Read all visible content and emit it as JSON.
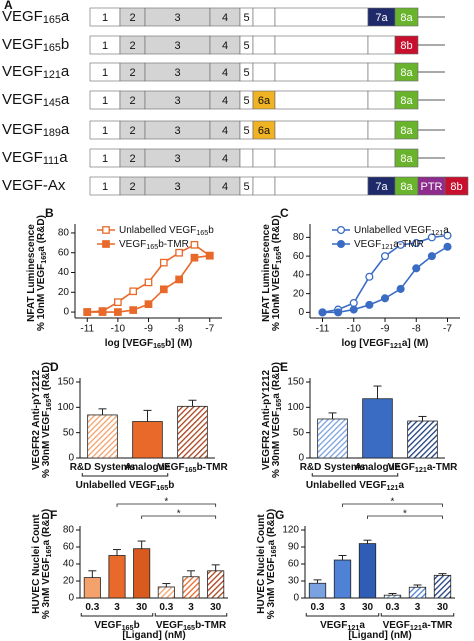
{
  "panel_a": {
    "letter": "A",
    "rows": [
      {
        "label": [
          "VEGF",
          "165",
          "a"
        ],
        "exons": [
          {
            "label": "1",
            "color": "#ffffff"
          },
          {
            "label": "2",
            "color": "#d4d4d4"
          },
          {
            "label": "3",
            "color": "#d4d4d4"
          },
          {
            "label": "4",
            "color": "#d4d4d4"
          },
          {
            "label": "5",
            "color": "#ffffff"
          },
          null,
          null,
          {
            "label": "7a",
            "color": "#1f2a6b"
          },
          {
            "label": "8a",
            "color": "#6ab42d"
          }
        ]
      },
      {
        "label": [
          "VEGF",
          "165",
          "b"
        ],
        "exons": [
          {
            "label": "1",
            "color": "#ffffff"
          },
          {
            "label": "2",
            "color": "#d4d4d4"
          },
          {
            "label": "3",
            "color": "#d4d4d4"
          },
          {
            "label": "4",
            "color": "#d4d4d4"
          },
          {
            "label": "5",
            "color": "#ffffff"
          },
          null,
          null,
          null,
          {
            "label": "8b",
            "color": "#c8102e"
          }
        ]
      },
      {
        "label": [
          "VEGF",
          "121",
          "a"
        ],
        "exons": [
          {
            "label": "1",
            "color": "#ffffff"
          },
          {
            "label": "2",
            "color": "#d4d4d4"
          },
          {
            "label": "3",
            "color": "#d4d4d4"
          },
          {
            "label": "4",
            "color": "#d4d4d4"
          },
          {
            "label": "5",
            "color": "#ffffff"
          },
          null,
          null,
          null,
          {
            "label": "8a",
            "color": "#6ab42d"
          }
        ]
      },
      {
        "label": [
          "VEGF",
          "145",
          "a"
        ],
        "exons": [
          {
            "label": "1",
            "color": "#ffffff"
          },
          {
            "label": "2",
            "color": "#d4d4d4"
          },
          {
            "label": "3",
            "color": "#d4d4d4"
          },
          {
            "label": "4",
            "color": "#d4d4d4"
          },
          {
            "label": "5",
            "color": "#ffffff"
          },
          {
            "label": "6a",
            "color": "#f0b323"
          },
          null,
          null,
          {
            "label": "8a",
            "color": "#6ab42d"
          }
        ]
      },
      {
        "label": [
          "VEGF",
          "189",
          "a"
        ],
        "exons": [
          {
            "label": "1",
            "color": "#ffffff"
          },
          {
            "label": "2",
            "color": "#d4d4d4"
          },
          {
            "label": "3",
            "color": "#d4d4d4"
          },
          {
            "label": "4",
            "color": "#d4d4d4"
          },
          {
            "label": "5",
            "color": "#ffffff"
          },
          {
            "label": "6a",
            "color": "#f0b323"
          },
          null,
          null,
          {
            "label": "8a",
            "color": "#6ab42d"
          }
        ]
      },
      {
        "label": [
          "VEGF",
          "111",
          "a"
        ],
        "exons": [
          {
            "label": "1",
            "color": "#ffffff"
          },
          {
            "label": "2",
            "color": "#d4d4d4"
          },
          {
            "label": "3",
            "color": "#d4d4d4"
          },
          {
            "label": "4",
            "color": "#d4d4d4"
          },
          null,
          null,
          null,
          null,
          {
            "label": "8a",
            "color": "#6ab42d"
          }
        ]
      },
      {
        "label": [
          "VEGF-Ax"
        ],
        "exons": [
          {
            "label": "1",
            "color": "#ffffff"
          },
          {
            "label": "2",
            "color": "#d4d4d4"
          },
          {
            "label": "3",
            "color": "#d4d4d4"
          },
          {
            "label": "4",
            "color": "#d4d4d4"
          },
          {
            "label": "5",
            "color": "#ffffff"
          },
          null,
          null,
          {
            "label": "7a",
            "color": "#1f2a6b"
          },
          {
            "label": "8a",
            "color": "#6ab42d"
          },
          {
            "label": "PTR",
            "color": "#8e2c8e"
          },
          {
            "label": "8b",
            "color": "#c8102e"
          }
        ]
      }
    ]
  },
  "chart_data": [
    {
      "panel": "B",
      "type": "line",
      "xlabel": [
        "log [VEGF",
        "165",
        "b] (M)"
      ],
      "ylabel": [
        [
          "NFAT Luminescence"
        ],
        [
          "% 10nM VEGF",
          "165",
          "a (R&D)"
        ]
      ],
      "x": [
        -11,
        -10.5,
        -10,
        -9.5,
        -9,
        -8.5,
        -8,
        -7.5,
        -7
      ],
      "series": [
        {
          "name": [
            "Unlabelled VEGF",
            "165",
            "b"
          ],
          "color": "#e8692a",
          "marker": "square",
          "filled": false,
          "values": [
            0,
            1,
            10,
            21,
            30,
            50,
            60,
            68,
            57
          ]
        },
        {
          "name": [
            "VEGF",
            "165",
            "b-TMR"
          ],
          "color": "#e8692a",
          "marker": "square",
          "filled": true,
          "values": [
            0,
            0,
            0,
            2,
            8,
            23,
            33,
            55,
            57
          ]
        }
      ],
      "xlim": [
        -11.4,
        -6.6
      ],
      "ylim": [
        -6,
        85
      ],
      "xticks": [
        -11,
        -10,
        -9,
        -8,
        -7
      ],
      "yticks": [
        0,
        20,
        40,
        60,
        80
      ]
    },
    {
      "panel": "C",
      "type": "line",
      "xlabel": [
        "log [VEGF",
        "121",
        "a] (M)"
      ],
      "ylabel": [
        [
          "NFAT Luminescence"
        ],
        [
          "% 10nM VEGF",
          "165",
          "a (R&D)"
        ]
      ],
      "x": [
        -11,
        -10.5,
        -10,
        -9.5,
        -9,
        -8.5,
        -8,
        -7.5,
        -7
      ],
      "series": [
        {
          "name": [
            "Unlabelled VEGF",
            "121",
            "a"
          ],
          "color": "#3a6cc4",
          "marker": "circle",
          "filled": false,
          "values": [
            0,
            3,
            10,
            38,
            60,
            72,
            74,
            80,
            82
          ]
        },
        {
          "name": [
            "VEGF",
            "121",
            "a-TMR"
          ],
          "color": "#3a6cc4",
          "marker": "circle",
          "filled": true,
          "values": [
            0,
            0,
            3,
            8,
            15,
            25,
            47,
            60,
            70
          ]
        }
      ],
      "xlim": [
        -11.4,
        -6.6
      ],
      "ylim": [
        -6,
        90
      ],
      "xticks": [
        -11,
        -10,
        -9,
        -8,
        -7
      ],
      "yticks": [
        0,
        20,
        40,
        60,
        80
      ]
    },
    {
      "panel": "D",
      "type": "bar",
      "categories": [
        [
          "R&D Systems"
        ],
        [
          "Analogue"
        ],
        [
          "VEGF",
          "165",
          "b-TMR"
        ]
      ],
      "values": [
        85,
        72,
        102
      ],
      "errors": [
        12,
        22,
        12
      ],
      "colors": [
        "#f4a26b",
        "#e8692a",
        "#a8441c"
      ],
      "hatched": [
        true,
        false,
        true
      ],
      "groups": [
        {
          "label": [
            "Unlabelled VEGF",
            "165",
            "b"
          ],
          "from": 0,
          "to": 1
        }
      ],
      "ylabel": [
        [
          "VEGFR2 Anti-pY1212"
        ],
        [
          "% 30nM VEGF",
          "165",
          "a (R&D)"
        ]
      ],
      "ylim": [
        0,
        150
      ],
      "yticks": [
        0,
        50,
        100,
        150
      ]
    },
    {
      "panel": "E",
      "type": "bar",
      "categories": [
        [
          "R&D Systems"
        ],
        [
          "Analogue"
        ],
        [
          "VEGF",
          "121",
          "a-TMR"
        ]
      ],
      "values": [
        77,
        117,
        73
      ],
      "errors": [
        12,
        25,
        9
      ],
      "colors": [
        "#7aa2e0",
        "#3a6cc4",
        "#1f3f80"
      ],
      "hatched": [
        true,
        false,
        true
      ],
      "groups": [
        {
          "label": [
            "Unlabelled VEGF",
            "121",
            "a"
          ],
          "from": 0,
          "to": 1
        }
      ],
      "ylabel": [
        [
          "VEGFR2 Anti-pY1212"
        ],
        [
          "% 30nM VEGF",
          "165",
          "a (R&D)"
        ]
      ],
      "ylim": [
        0,
        150
      ],
      "yticks": [
        0,
        50,
        100,
        150
      ]
    },
    {
      "panel": "F",
      "type": "bar",
      "categories": [
        [
          "0.3"
        ],
        [
          "3"
        ],
        [
          "30"
        ],
        [
          "0.3"
        ],
        [
          "3"
        ],
        [
          "30"
        ]
      ],
      "values": [
        24,
        50,
        58,
        13,
        25,
        32
      ],
      "errors": [
        8,
        7,
        9,
        4,
        7,
        7
      ],
      "colors": [
        "#f4a26b",
        "#e8692a",
        "#d85a1e",
        "#f4a26b",
        "#e8692a",
        "#a8441c"
      ],
      "hatched": [
        false,
        false,
        false,
        true,
        true,
        true
      ],
      "groups": [
        {
          "label": [
            "VEGF",
            "165",
            "b"
          ],
          "from": 0,
          "to": 2
        },
        {
          "label": [
            "VEGF",
            "165",
            "b-TMR"
          ],
          "from": 3,
          "to": 5
        }
      ],
      "xlabel": [
        "[Ligand] (nM)"
      ],
      "ylabel": [
        [
          "HUVEC Nuclei Count"
        ],
        [
          "% 3nM VEGF",
          "165",
          "a (R&D)"
        ]
      ],
      "ylim": [
        0,
        80
      ],
      "yticks": [
        0,
        20,
        40,
        60,
        80
      ],
      "significance": [
        {
          "label": "*",
          "from": 2,
          "to": 5
        },
        {
          "label": "*",
          "from": 1,
          "to": 5
        }
      ]
    },
    {
      "panel": "G",
      "type": "bar",
      "categories": [
        [
          "0.3"
        ],
        [
          "3"
        ],
        [
          "30"
        ],
        [
          "0.3"
        ],
        [
          "3"
        ],
        [
          "30"
        ]
      ],
      "values": [
        26,
        67,
        96,
        5,
        19,
        40
      ],
      "errors": [
        6,
        8,
        6,
        3,
        4,
        3
      ],
      "colors": [
        "#7aa2e0",
        "#4f82d6",
        "#2f5db5",
        "#7aa2e0",
        "#4f82d6",
        "#1f3f80"
      ],
      "hatched": [
        false,
        false,
        false,
        true,
        true,
        true
      ],
      "groups": [
        {
          "label": [
            "VEGF",
            "121",
            "a"
          ],
          "from": 0,
          "to": 2
        },
        {
          "label": [
            "VEGF",
            "121",
            "a-TMR"
          ],
          "from": 3,
          "to": 5
        }
      ],
      "xlabel": [
        "[Ligand] (nM)"
      ],
      "ylabel": [
        [
          "HUVEC Nuclei Count"
        ],
        [
          "% 3nM VEGF",
          "165",
          "a (R&D)"
        ]
      ],
      "ylim": [
        0,
        120
      ],
      "yticks": [
        0,
        30,
        60,
        90,
        120
      ],
      "significance": [
        {
          "label": "*",
          "from": 2,
          "to": 5
        },
        {
          "label": "*",
          "from": 1,
          "to": 5
        }
      ]
    }
  ]
}
